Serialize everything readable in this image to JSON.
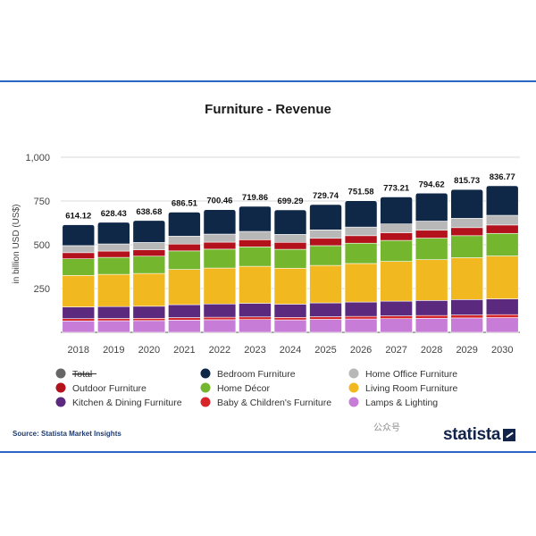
{
  "chart_data": {
    "type": "bar",
    "stacked": true,
    "title": "Furniture - Revenue",
    "ylabel": "in billion USD (US$)",
    "xlabel": "",
    "ylim": [
      0,
      1000
    ],
    "yticks": [
      0,
      250,
      500,
      750,
      1000
    ],
    "ytick_labels": [
      "",
      "250",
      "500",
      "750",
      "1,000"
    ],
    "categories": [
      "2018",
      "2019",
      "2020",
      "2021",
      "2022",
      "2023",
      "2024",
      "2025",
      "2026",
      "2027",
      "2028",
      "2029",
      "2030"
    ],
    "totals": [
      614.12,
      628.43,
      638.68,
      686.51,
      700.46,
      719.86,
      699.29,
      729.74,
      751.58,
      773.21,
      794.62,
      815.73,
      836.77
    ],
    "total_labels": [
      "614.12",
      "628.43",
      "638.68",
      "686.51",
      "700.46",
      "719.86",
      "699.29",
      "729.74",
      "751.58",
      "773.21",
      "794.62",
      "815.73",
      "836.77"
    ],
    "series": [
      {
        "name": "Lamps & Lighting",
        "color": "#c77dd8",
        "values": [
          65,
          66,
          67,
          70,
          72,
          73,
          71,
          74,
          76,
          78,
          80,
          82,
          84
        ]
      },
      {
        "name": "Baby & Children's Furniture",
        "color": "#d7262a",
        "values": [
          13,
          13,
          13,
          14,
          14,
          15,
          14,
          15,
          15,
          16,
          16,
          17,
          17
        ]
      },
      {
        "name": "Kitchen & Dining Furniture",
        "color": "#5b2a7e",
        "values": [
          67,
          68,
          69,
          74,
          76,
          78,
          76,
          79,
          82,
          84,
          86,
          88,
          90
        ]
      },
      {
        "name": "Living Room Furniture",
        "color": "#f2b81f",
        "values": [
          180,
          184,
          187,
          201,
          205,
          211,
          205,
          214,
          220,
          227,
          233,
          239,
          245
        ]
      },
      {
        "name": "Home Décor",
        "color": "#74b72e",
        "values": [
          95,
          97,
          99,
          106,
          108,
          111,
          108,
          113,
          116,
          120,
          123,
          126,
          129
        ]
      },
      {
        "name": "Outdoor Furniture",
        "color": "#b3121c",
        "values": [
          35,
          36,
          36,
          39,
          40,
          41,
          40,
          42,
          43,
          44,
          45,
          46,
          48
        ]
      },
      {
        "name": "Home Office Furniture",
        "color": "#b8b8b8",
        "values": [
          40,
          41,
          42,
          45,
          46,
          47,
          46,
          48,
          49,
          50,
          52,
          53,
          55
        ]
      },
      {
        "name": "Bedroom Furniture",
        "color": "#102848",
        "values": [
          119.12,
          123.43,
          125.68,
          137.51,
          139.46,
          143.86,
          139.29,
          144.74,
          150.58,
          154.21,
          159.62,
          164.73,
          168.77
        ]
      }
    ],
    "legend": [
      {
        "label": "Total",
        "color": "#666666",
        "struck": true
      },
      {
        "label": "Bedroom Furniture",
        "color": "#102848"
      },
      {
        "label": "Home Office Furniture",
        "color": "#b8b8b8"
      },
      {
        "label": "Outdoor Furniture",
        "color": "#b3121c"
      },
      {
        "label": "Home Décor",
        "color": "#74b72e"
      },
      {
        "label": "Living Room Furniture",
        "color": "#f2b81f"
      },
      {
        "label": "Kitchen & Dining Furniture",
        "color": "#5b2a7e"
      },
      {
        "label": "Baby & Children's Furniture",
        "color": "#d7262a"
      },
      {
        "label": "Lamps & Lighting",
        "color": "#c77dd8"
      }
    ],
    "legend_placement": "bottom",
    "grid": true
  },
  "source": "Source: Statista Market Insights",
  "watermark": "公众号",
  "brand": "statista"
}
